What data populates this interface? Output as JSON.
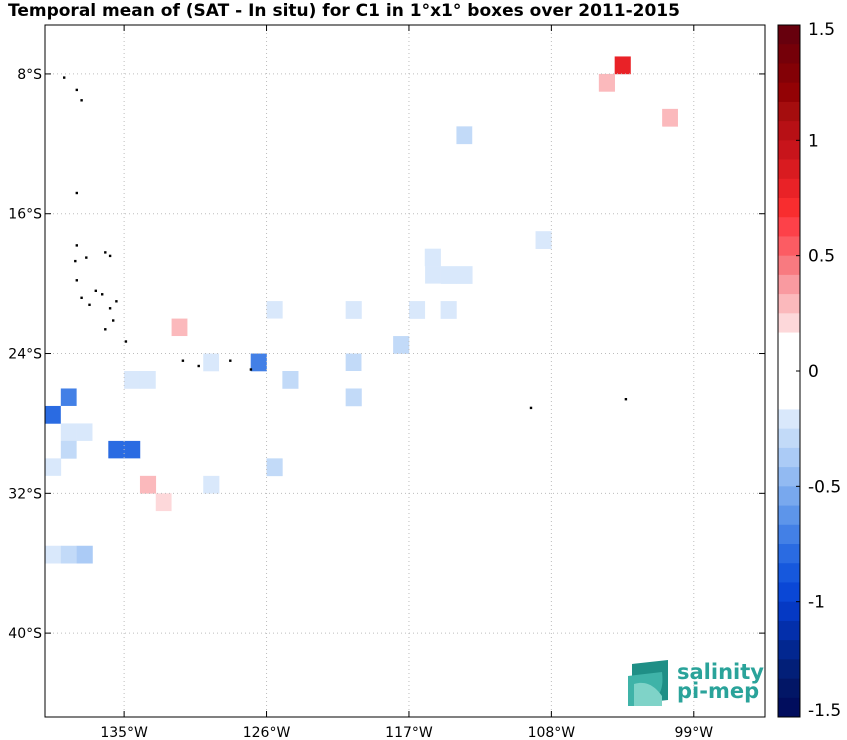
{
  "chart_data": {
    "type": "heatmap",
    "title": "Temporal mean of (SAT - In situ) for C1 in 1°x1° boxes over 2011-2015",
    "x_axis": {
      "range_lon": [
        -140.0,
        -94.5
      ],
      "ticks": [
        {
          "value": -135,
          "label": "135°W"
        },
        {
          "value": -126,
          "label": "126°W"
        },
        {
          "value": -117,
          "label": "117°W"
        },
        {
          "value": -108,
          "label": "108°W"
        },
        {
          "value": -99,
          "label": "99°W"
        }
      ]
    },
    "y_axis": {
      "range_lat": [
        -44.8,
        -5.2
      ],
      "ticks": [
        {
          "value": -8,
          "label": "8°S"
        },
        {
          "value": -16,
          "label": "16°S"
        },
        {
          "value": -24,
          "label": "24°S"
        },
        {
          "value": -32,
          "label": "32°S"
        },
        {
          "value": -40,
          "label": "40°S"
        }
      ]
    },
    "grid": true,
    "colorbar": {
      "range": [
        -1.5,
        1.5
      ],
      "levels": 36,
      "ticks": [
        {
          "value": 1.5,
          "label": "1.5"
        },
        {
          "value": 1,
          "label": "1"
        },
        {
          "value": 0.5,
          "label": "0.5"
        },
        {
          "value": 0,
          "label": "0"
        },
        {
          "value": -0.5,
          "label": "-0.5"
        },
        {
          "value": -1,
          "label": "-1"
        },
        {
          "value": -1.5,
          "label": "-1.5"
        }
      ],
      "colors_top_to_bottom": [
        "#67000d",
        "#750009",
        "#830106",
        "#930205",
        "#a50d0e",
        "#b71015",
        "#c8141b",
        "#d91b20",
        "#e92227",
        "#f82d2f",
        "#fd4149",
        "#fc5c63",
        "#f87a80",
        "#f99aa0",
        "#fbb9bc",
        "#fdd8da",
        "#ffffff",
        "#ffffff",
        "#ffffff",
        "#ffffff",
        "#d9e8fb",
        "#c2daf8",
        "#abcbf6",
        "#92baf2",
        "#78a8ee",
        "#5d95ea",
        "#4380e6",
        "#2a6be2",
        "#1658dd",
        "#0a47d6",
        "#0539c4",
        "#032fab",
        "#022790",
        "#021f78",
        "#021666",
        "#010d5d"
      ]
    },
    "cells": [
      {
        "lon": -117.5,
        "lat": -5.5,
        "value": 0.1
      },
      {
        "lon": -117.5,
        "lat": -6.5,
        "value": 0.1
      },
      {
        "lon": -116.5,
        "lat": -6.5,
        "value": 0.1
      },
      {
        "lon": -119.5,
        "lat": -6.5,
        "value": 0.1
      },
      {
        "lon": -120.5,
        "lat": -6.5,
        "value": 0.1
      },
      {
        "lon": -102.5,
        "lat": -6.5,
        "value": 0.1
      },
      {
        "lon": -96.5,
        "lat": -6.5,
        "value": -0.1
      },
      {
        "lon": -103.5,
        "lat": -7.5,
        "value": 0.8
      },
      {
        "lon": -123.5,
        "lat": -7.5,
        "value": 0.1
      },
      {
        "lon": -97.5,
        "lat": -7.5,
        "value": -0.1
      },
      {
        "lon": -97.5,
        "lat": -8.5,
        "value": -0.1
      },
      {
        "lon": -104.5,
        "lat": -8.5,
        "value": 0.3
      },
      {
        "lon": -125.5,
        "lat": -8.5,
        "value": 0.1
      },
      {
        "lon": -128.5,
        "lat": -9.5,
        "value": 0.1
      },
      {
        "lon": -99.5,
        "lat": -9.5,
        "value": -0.1
      },
      {
        "lon": -98.5,
        "lat": -9.5,
        "value": -0.1
      },
      {
        "lon": -100.5,
        "lat": -10.5,
        "value": 0.3
      },
      {
        "lon": -99.5,
        "lat": -10.5,
        "value": -0.1
      },
      {
        "lon": -98.5,
        "lat": -10.5,
        "value": -0.1
      },
      {
        "lon": -113.5,
        "lat": -11.5,
        "value": -0.3
      },
      {
        "lon": -112.5,
        "lat": -11.5,
        "value": -0.1
      },
      {
        "lon": -110.5,
        "lat": -11.5,
        "value": 0.1
      },
      {
        "lon": -101.5,
        "lat": -11.5,
        "value": -0.1
      },
      {
        "lon": -104.5,
        "lat": -12.5,
        "value": -0.1
      },
      {
        "lon": -112.5,
        "lat": -12.5,
        "value": -0.1
      },
      {
        "lon": -114.5,
        "lat": -13.5,
        "value": -0.1
      },
      {
        "lon": -113.5,
        "lat": -13.5,
        "value": 0.1
      },
      {
        "lon": -103.5,
        "lat": -13.5,
        "value": -0.1
      },
      {
        "lon": -117.5,
        "lat": -15.5,
        "value": -0.1
      },
      {
        "lon": -113.5,
        "lat": -16.5,
        "value": -0.1
      },
      {
        "lon": -112.5,
        "lat": -16.5,
        "value": -0.1
      },
      {
        "lon": -117.5,
        "lat": -16.5,
        "value": -0.1
      },
      {
        "lon": -108.5,
        "lat": -16.5,
        "value": -0.1
      },
      {
        "lon": -107.5,
        "lat": -16.5,
        "value": -0.1
      },
      {
        "lon": -106.5,
        "lat": -16.5,
        "value": -0.1
      },
      {
        "lon": -116.5,
        "lat": -17.5,
        "value": -0.1
      },
      {
        "lon": -117.5,
        "lat": -17.5,
        "value": -0.1
      },
      {
        "lon": -118.5,
        "lat": -17.5,
        "value": -0.1
      },
      {
        "lon": -121.5,
        "lat": -17.5,
        "value": -0.1
      },
      {
        "lon": -108.5,
        "lat": -17.5,
        "value": -0.2
      },
      {
        "lon": -122.5,
        "lat": -18.5,
        "value": -0.1
      },
      {
        "lon": -115.5,
        "lat": -18.5,
        "value": -0.2
      },
      {
        "lon": -113.5,
        "lat": -18.5,
        "value": -0.1
      },
      {
        "lon": -112.5,
        "lat": -18.5,
        "value": -0.1
      },
      {
        "lon": -111.5,
        "lat": -18.5,
        "value": -0.1
      },
      {
        "lon": -115.5,
        "lat": -19.5,
        "value": -0.2
      },
      {
        "lon": -114.5,
        "lat": -19.5,
        "value": -0.2
      },
      {
        "lon": -113.5,
        "lat": -19.5,
        "value": -0.2
      },
      {
        "lon": -116.5,
        "lat": -19.5,
        "value": -0.1
      },
      {
        "lon": -117.5,
        "lat": -19.5,
        "value": -0.1
      },
      {
        "lon": -118.5,
        "lat": -19.5,
        "value": -0.1
      },
      {
        "lon": -121.5,
        "lat": -19.5,
        "value": -0.1
      },
      {
        "lon": -120.5,
        "lat": -19.5,
        "value": -0.1
      },
      {
        "lon": -119.5,
        "lat": -19.5,
        "value": -0.1
      },
      {
        "lon": -115.5,
        "lat": -20.5,
        "value": -0.1
      },
      {
        "lon": -124.5,
        "lat": -20.5,
        "value": 0.1
      },
      {
        "lon": -125.5,
        "lat": -20.5,
        "value": 0.1
      },
      {
        "lon": -123.5,
        "lat": -20.5,
        "value": -0.1
      },
      {
        "lon": -122.5,
        "lat": -20.5,
        "value": -0.1
      },
      {
        "lon": -121.5,
        "lat": -20.5,
        "value": -0.1
      },
      {
        "lon": -120.5,
        "lat": -20.5,
        "value": -0.1
      },
      {
        "lon": -119.5,
        "lat": -20.5,
        "value": -0.1
      },
      {
        "lon": -124.5,
        "lat": -21.5,
        "value": -0.1
      },
      {
        "lon": -125.5,
        "lat": -21.5,
        "value": -0.2
      },
      {
        "lon": -122.5,
        "lat": -21.5,
        "value": -0.1
      },
      {
        "lon": -121.5,
        "lat": -21.5,
        "value": -0.1
      },
      {
        "lon": -120.5,
        "lat": -21.5,
        "value": -0.2
      },
      {
        "lon": -117.5,
        "lat": -21.5,
        "value": -0.1
      },
      {
        "lon": -116.5,
        "lat": -21.5,
        "value": -0.2
      },
      {
        "lon": -114.5,
        "lat": -21.5,
        "value": -0.2
      },
      {
        "lon": -131.5,
        "lat": -22.5,
        "value": 0.3
      },
      {
        "lon": -130.5,
        "lat": -22.5,
        "value": -0.1
      },
      {
        "lon": -126.5,
        "lat": -22.5,
        "value": -0.1
      },
      {
        "lon": -125.5,
        "lat": -22.5,
        "value": -0.1
      },
      {
        "lon": -124.5,
        "lat": -22.5,
        "value": -0.1
      },
      {
        "lon": -122.5,
        "lat": -22.5,
        "value": -0.1
      },
      {
        "lon": -118.5,
        "lat": -22.5,
        "value": -0.1
      },
      {
        "lon": -133.5,
        "lat": -23.5,
        "value": 0.1
      },
      {
        "lon": -131.5,
        "lat": -23.5,
        "value": 0.1
      },
      {
        "lon": -129.5,
        "lat": -23.5,
        "value": -0.1
      },
      {
        "lon": -128.5,
        "lat": -23.5,
        "value": -0.1
      },
      {
        "lon": -127.5,
        "lat": -23.5,
        "value": -0.1
      },
      {
        "lon": -126.5,
        "lat": -23.5,
        "value": -0.1
      },
      {
        "lon": -125.5,
        "lat": -23.5,
        "value": -0.1
      },
      {
        "lon": -124.5,
        "lat": -23.5,
        "value": -0.1
      },
      {
        "lon": -122.5,
        "lat": -23.5,
        "value": -0.1
      },
      {
        "lon": -118.5,
        "lat": -23.5,
        "value": -0.1
      },
      {
        "lon": -117.5,
        "lat": -23.5,
        "value": -0.3
      },
      {
        "lon": -132.5,
        "lat": -24.5,
        "value": 0.1
      },
      {
        "lon": -129.5,
        "lat": -24.5,
        "value": -0.2
      },
      {
        "lon": -128.5,
        "lat": -24.5,
        "value": -0.1
      },
      {
        "lon": -127.5,
        "lat": -24.5,
        "value": -0.1
      },
      {
        "lon": -126.5,
        "lat": -24.5,
        "value": -0.7
      },
      {
        "lon": -121.5,
        "lat": -24.5,
        "value": -0.1
      },
      {
        "lon": -120.5,
        "lat": -24.5,
        "value": -0.3
      },
      {
        "lon": -119.5,
        "lat": -24.5,
        "value": -0.1
      },
      {
        "lon": -137.5,
        "lat": -25.5,
        "value": 0.1
      },
      {
        "lon": -136.5,
        "lat": -25.5,
        "value": -0.1
      },
      {
        "lon": -134.5,
        "lat": -25.5,
        "value": -0.2
      },
      {
        "lon": -133.5,
        "lat": -25.5,
        "value": -0.2
      },
      {
        "lon": -132.5,
        "lat": -25.5,
        "value": 0.1
      },
      {
        "lon": -124.5,
        "lat": -25.5,
        "value": -0.3
      },
      {
        "lon": -120.5,
        "lat": -25.5,
        "value": -0.1
      },
      {
        "lon": -138.5,
        "lat": -26.5,
        "value": -0.7
      },
      {
        "lon": -137.5,
        "lat": -26.5,
        "value": -0.1
      },
      {
        "lon": -136.5,
        "lat": -26.5,
        "value": -0.1
      },
      {
        "lon": -132.5,
        "lat": -26.5,
        "value": -0.1
      },
      {
        "lon": -129.5,
        "lat": -26.5,
        "value": 0.1
      },
      {
        "lon": -120.5,
        "lat": -26.5,
        "value": -0.3
      },
      {
        "lon": -139.5,
        "lat": -27.5,
        "value": -0.8
      },
      {
        "lon": -138.5,
        "lat": -27.5,
        "value": -0.1
      },
      {
        "lon": -129.5,
        "lat": -27.5,
        "value": -0.1
      },
      {
        "lon": -122.5,
        "lat": -27.5,
        "value": -0.1
      },
      {
        "lon": -138.5,
        "lat": -28.5,
        "value": -0.2
      },
      {
        "lon": -137.5,
        "lat": -28.5,
        "value": -0.2
      },
      {
        "lon": -136.5,
        "lat": -28.5,
        "value": -0.1
      },
      {
        "lon": -135.5,
        "lat": -28.5,
        "value": -0.1
      },
      {
        "lon": -128.5,
        "lat": -28.5,
        "value": -0.1
      },
      {
        "lon": -139.5,
        "lat": -29.5,
        "value": -0.1
      },
      {
        "lon": -138.5,
        "lat": -29.5,
        "value": -0.3
      },
      {
        "lon": -137.5,
        "lat": -29.5,
        "value": -0.1
      },
      {
        "lon": -136.5,
        "lat": -29.5,
        "value": -0.1
      },
      {
        "lon": -135.5,
        "lat": -29.5,
        "value": -0.8
      },
      {
        "lon": -134.5,
        "lat": -29.5,
        "value": -0.8
      },
      {
        "lon": -129.5,
        "lat": -29.5,
        "value": 0.1
      },
      {
        "lon": -139.5,
        "lat": -30.5,
        "value": -0.2
      },
      {
        "lon": -137.5,
        "lat": -30.5,
        "value": -0.1
      },
      {
        "lon": -136.5,
        "lat": -30.5,
        "value": -0.1
      },
      {
        "lon": -135.5,
        "lat": -30.5,
        "value": -0.1
      },
      {
        "lon": -134.5,
        "lat": -30.5,
        "value": -0.1
      },
      {
        "lon": -131.5,
        "lat": -30.5,
        "value": 0.1
      },
      {
        "lon": -130.5,
        "lat": -30.5,
        "value": 0.1
      },
      {
        "lon": -125.5,
        "lat": -30.5,
        "value": -0.3
      },
      {
        "lon": -139.5,
        "lat": -31.5,
        "value": -0.1
      },
      {
        "lon": -138.5,
        "lat": -31.5,
        "value": -0.1
      },
      {
        "lon": -133.5,
        "lat": -31.5,
        "value": 0.3
      },
      {
        "lon": -129.5,
        "lat": -31.5,
        "value": -0.2
      },
      {
        "lon": -132.5,
        "lat": -32.5,
        "value": 0.2
      },
      {
        "lon": -131.5,
        "lat": -32.5,
        "value": -0.1
      },
      {
        "lon": -138.5,
        "lat": -33.5,
        "value": -0.1
      },
      {
        "lon": -139.5,
        "lat": -35.5,
        "value": -0.2
      },
      {
        "lon": -138.5,
        "lat": -35.5,
        "value": -0.3
      },
      {
        "lon": -137.5,
        "lat": -35.5,
        "value": -0.4
      }
    ],
    "land_dots": [
      [
        -138.8,
        -8.2
      ],
      [
        -138.0,
        -8.9
      ],
      [
        -137.7,
        -9.5
      ],
      [
        -138.0,
        -14.8
      ],
      [
        -138.0,
        -17.8
      ],
      [
        -138.1,
        -18.7
      ],
      [
        -137.4,
        -18.5
      ],
      [
        -136.2,
        -18.2
      ],
      [
        -135.9,
        -18.4
      ],
      [
        -138.0,
        -19.8
      ],
      [
        -137.7,
        -20.8
      ],
      [
        -136.8,
        -20.4
      ],
      [
        -136.4,
        -20.6
      ],
      [
        -135.5,
        -21.0
      ],
      [
        -135.9,
        -21.4
      ],
      [
        -137.2,
        -21.2
      ],
      [
        -135.7,
        -22.1
      ],
      [
        -136.2,
        -22.6
      ],
      [
        -134.9,
        -23.3
      ],
      [
        -131.3,
        -24.4
      ],
      [
        -130.3,
        -24.7
      ],
      [
        -128.3,
        -24.4
      ],
      [
        -127.0,
        -24.9
      ],
      [
        -109.3,
        -27.1
      ],
      [
        -103.3,
        -26.6
      ]
    ],
    "logo": {
      "line1": "salinity",
      "line2": "pi-mep"
    }
  }
}
